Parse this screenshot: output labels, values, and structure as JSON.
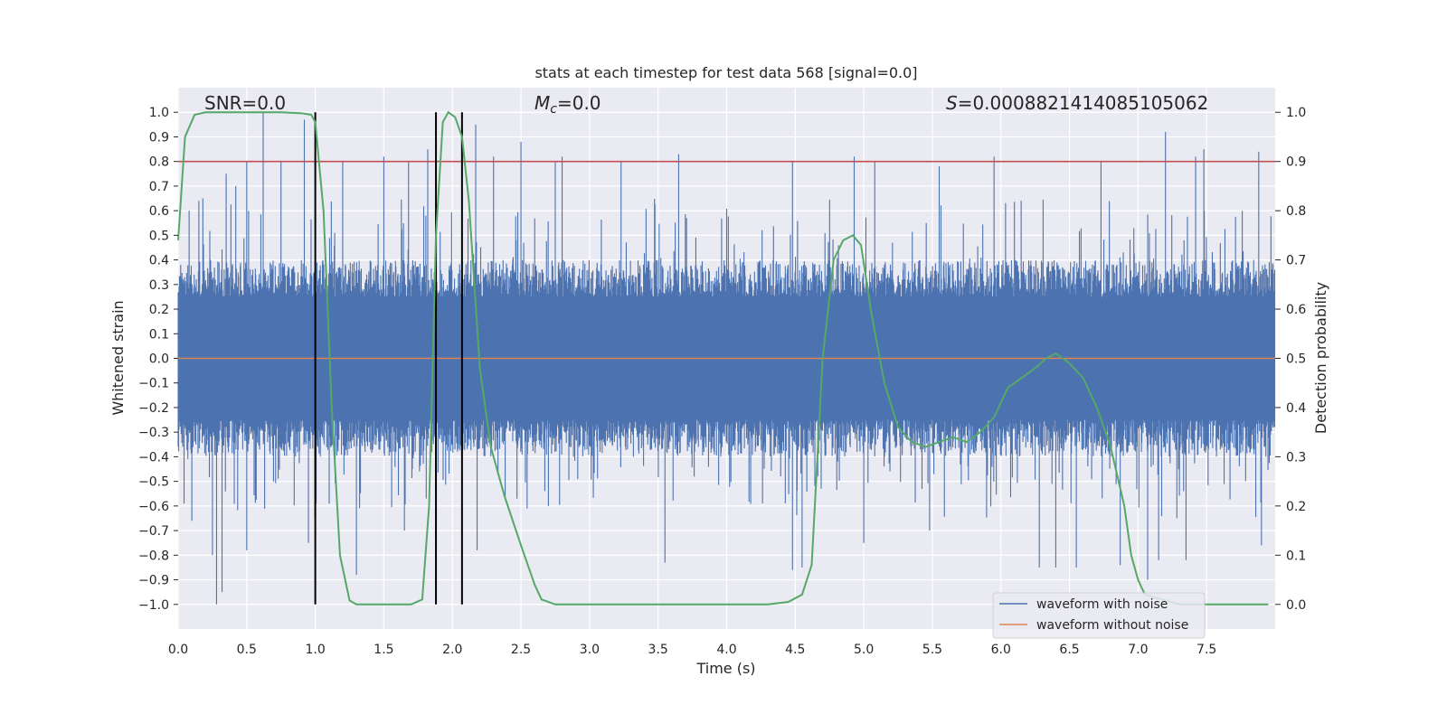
{
  "chart_data": {
    "type": "line",
    "title": "stats at each timestep for test data 568 [signal=0.0]",
    "xlabel": "Time (s)",
    "ylabel": "Whitened strain",
    "y2label": "Detection probability",
    "xlim": [
      0.0,
      8.0
    ],
    "ylim": [
      -1.1,
      1.1
    ],
    "y2lim": [
      -0.05,
      1.05
    ],
    "xticks": [
      0.0,
      0.5,
      1.0,
      1.5,
      2.0,
      2.5,
      3.0,
      3.5,
      4.0,
      4.5,
      5.0,
      5.5,
      6.0,
      6.5,
      7.0,
      7.5
    ],
    "yticks": [
      -1.0,
      -0.9,
      -0.8,
      -0.7,
      -0.6,
      -0.5,
      -0.4,
      -0.3,
      -0.2,
      -0.1,
      0.0,
      0.1,
      0.2,
      0.3,
      0.4,
      0.5,
      0.6,
      0.7,
      0.8,
      0.9,
      1.0
    ],
    "y2ticks": [
      0.0,
      0.1,
      0.2,
      0.3,
      0.4,
      0.5,
      0.6,
      0.7,
      0.8,
      0.9,
      1.0
    ],
    "threshold": {
      "y2": 0.9,
      "color": "#c44e52"
    },
    "vlines": {
      "x": [
        1.0,
        1.88,
        2.07
      ],
      "y_range": [
        -1.0,
        1.0
      ],
      "color": "#000000"
    },
    "annotations": {
      "snr": "SNR=0.0",
      "mc_symbol": "M",
      "mc_sub": "c",
      "mc_value": "=0.0",
      "s_symbol": "S",
      "s_value": "=0.0008821414085105062"
    },
    "series": [
      {
        "name": "waveform with noise",
        "color": "#4c72b0",
        "axis": "left",
        "kind": "noise",
        "band_abs": 0.25,
        "spikes_pos": [
          [
            0.08,
            0.6
          ],
          [
            0.18,
            0.65
          ],
          [
            0.35,
            0.75
          ],
          [
            0.42,
            0.7
          ],
          [
            0.5,
            0.8
          ],
          [
            0.62,
            1.0
          ],
          [
            0.75,
            0.8
          ],
          [
            0.92,
            0.97
          ],
          [
            1.2,
            0.8
          ],
          [
            1.5,
            0.82
          ],
          [
            1.68,
            0.8
          ],
          [
            1.82,
            0.85
          ],
          [
            2.17,
            0.95
          ],
          [
            2.3,
            0.82
          ],
          [
            2.5,
            0.88
          ],
          [
            2.75,
            0.8
          ],
          [
            2.8,
            0.82
          ],
          [
            3.23,
            0.8
          ],
          [
            3.65,
            0.83
          ],
          [
            4.48,
            0.8
          ],
          [
            4.93,
            0.82
          ],
          [
            5.08,
            0.8
          ],
          [
            5.55,
            0.78
          ],
          [
            5.95,
            0.82
          ],
          [
            6.73,
            0.8
          ],
          [
            7.2,
            0.92
          ],
          [
            7.42,
            0.82
          ],
          [
            7.48,
            0.85
          ],
          [
            7.88,
            0.84
          ]
        ],
        "spikes_neg": [
          [
            0.1,
            -0.66
          ],
          [
            0.25,
            -0.8
          ],
          [
            0.28,
            -1.0
          ],
          [
            0.32,
            -0.95
          ],
          [
            0.5,
            -0.78
          ],
          [
            0.95,
            -0.75
          ],
          [
            1.3,
            -0.88
          ],
          [
            1.65,
            -0.7
          ],
          [
            2.18,
            -0.78
          ],
          [
            2.7,
            -0.6
          ],
          [
            3.55,
            -0.83
          ],
          [
            4.48,
            -0.86
          ],
          [
            4.55,
            -0.85
          ],
          [
            5.0,
            -0.75
          ],
          [
            5.48,
            -0.7
          ],
          [
            6.28,
            -0.85
          ],
          [
            6.4,
            -0.85
          ],
          [
            6.55,
            -0.85
          ],
          [
            6.87,
            -0.84
          ],
          [
            7.07,
            -0.9
          ],
          [
            7.15,
            -0.82
          ],
          [
            7.35,
            -0.82
          ],
          [
            7.9,
            -0.76
          ]
        ]
      },
      {
        "name": "waveform without noise",
        "color": "#dd8452",
        "axis": "left",
        "x": [
          0.0,
          8.0
        ],
        "y": [
          0.0,
          0.0
        ]
      },
      {
        "name": "detection probability",
        "color": "#55a868",
        "axis": "right",
        "x": [
          0.0,
          0.05,
          0.12,
          0.2,
          0.3,
          0.5,
          0.75,
          0.9,
          0.97,
          1.0,
          1.06,
          1.12,
          1.18,
          1.25,
          1.3,
          1.5,
          1.7,
          1.78,
          1.83,
          1.88,
          1.93,
          1.97,
          2.02,
          2.07,
          2.12,
          2.2,
          2.28,
          2.38,
          2.5,
          2.6,
          2.65,
          2.75,
          3.0,
          3.5,
          4.0,
          4.3,
          4.45,
          4.55,
          4.62,
          4.7,
          4.78,
          4.85,
          4.92,
          4.98,
          5.05,
          5.15,
          5.25,
          5.35,
          5.45,
          5.55,
          5.65,
          5.75,
          5.85,
          5.95,
          6.05,
          6.15,
          6.25,
          6.33,
          6.4,
          6.5,
          6.6,
          6.7,
          6.8,
          6.9,
          6.95,
          7.0,
          7.05,
          7.3,
          7.6,
          7.95
        ],
        "y": [
          0.74,
          0.95,
          0.995,
          1.0,
          1.0,
          1.0,
          1.0,
          0.998,
          0.995,
          0.98,
          0.8,
          0.4,
          0.1,
          0.008,
          0.0,
          0.0,
          0.0,
          0.01,
          0.2,
          0.75,
          0.98,
          1.0,
          0.99,
          0.95,
          0.82,
          0.48,
          0.32,
          0.22,
          0.12,
          0.04,
          0.01,
          0.0,
          0.0,
          0.0,
          0.0,
          0.0,
          0.005,
          0.02,
          0.08,
          0.5,
          0.7,
          0.74,
          0.75,
          0.73,
          0.6,
          0.45,
          0.36,
          0.33,
          0.32,
          0.33,
          0.34,
          0.33,
          0.35,
          0.38,
          0.44,
          0.46,
          0.48,
          0.5,
          0.51,
          0.49,
          0.46,
          0.4,
          0.32,
          0.2,
          0.1,
          0.05,
          0.02,
          0.0,
          0.0,
          0.0
        ]
      }
    ],
    "legend": {
      "placement": "lower-right",
      "entries": [
        "waveform with noise",
        "waveform without noise"
      ]
    }
  }
}
